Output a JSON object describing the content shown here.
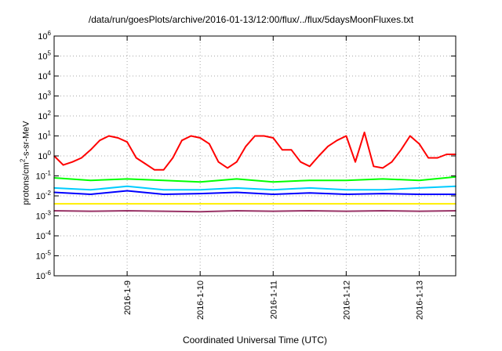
{
  "chart_data": {
    "type": "line",
    "title": "/data/run/goesPlots/archive/2016-01-13/12:00/flux/../flux/5daysMoonFluxes.txt",
    "xlabel": "Coordinated Universal Time (UTC)",
    "ylabel": {
      "prefix": "protons/cm",
      "sup": "2",
      "suffix": "-s-sr-MeV"
    },
    "y_scale": "log",
    "ylim": [
      1e-06,
      1000000.0
    ],
    "y_ticks": [
      {
        "value": 1e-06,
        "base": "10",
        "exp": "-6"
      },
      {
        "value": 1e-05,
        "base": "10",
        "exp": "-5"
      },
      {
        "value": 0.0001,
        "base": "10",
        "exp": "-4"
      },
      {
        "value": 0.001,
        "base": "10",
        "exp": "-3"
      },
      {
        "value": 0.01,
        "base": "10",
        "exp": "-2"
      },
      {
        "value": 0.1,
        "base": "10",
        "exp": "-1"
      },
      {
        "value": 1,
        "base": "10",
        "exp": "0"
      },
      {
        "value": 10,
        "base": "10",
        "exp": "1"
      },
      {
        "value": 100,
        "base": "10",
        "exp": "2"
      },
      {
        "value": 1000,
        "base": "10",
        "exp": "3"
      },
      {
        "value": 10000,
        "base": "10",
        "exp": "4"
      },
      {
        "value": 100000,
        "base": "10",
        "exp": "5"
      },
      {
        "value": 1000000,
        "base": "10",
        "exp": "6"
      }
    ],
    "xlim": [
      "2016-01-08 00:00",
      "2016-01-13 12:00"
    ],
    "x_ticks": [
      "2016-1-9",
      "2016-1-10",
      "2016-1-11",
      "2016-1-12",
      "2016-1-13"
    ],
    "grid": true,
    "series": [
      {
        "color": "#ff0000",
        "x": [
          "2016-01-08 00:00",
          "2016-01-08 03:00",
          "2016-01-08 06:00",
          "2016-01-08 09:00",
          "2016-01-08 12:00",
          "2016-01-08 15:00",
          "2016-01-08 18:00",
          "2016-01-08 21:00",
          "2016-01-09 00:00",
          "2016-01-09 03:00",
          "2016-01-09 06:00",
          "2016-01-09 09:00",
          "2016-01-09 12:00",
          "2016-01-09 15:00",
          "2016-01-09 18:00",
          "2016-01-09 21:00",
          "2016-01-10 00:00",
          "2016-01-10 03:00",
          "2016-01-10 06:00",
          "2016-01-10 09:00",
          "2016-01-10 12:00",
          "2016-01-10 15:00",
          "2016-01-10 18:00",
          "2016-01-10 21:00",
          "2016-01-11 00:00",
          "2016-01-11 03:00",
          "2016-01-11 06:00",
          "2016-01-11 09:00",
          "2016-01-11 12:00",
          "2016-01-11 15:00",
          "2016-01-11 18:00",
          "2016-01-11 21:00",
          "2016-01-12 00:00",
          "2016-01-12 03:00",
          "2016-01-12 06:00",
          "2016-01-12 09:00",
          "2016-01-12 12:00",
          "2016-01-12 15:00",
          "2016-01-12 18:00",
          "2016-01-12 21:00",
          "2016-01-13 00:00",
          "2016-01-13 03:00",
          "2016-01-13 06:00",
          "2016-01-13 09:00",
          "2016-01-13 12:00"
        ],
        "values": [
          1.0,
          0.35,
          0.5,
          0.8,
          2,
          6,
          10,
          8,
          5,
          0.8,
          0.4,
          0.2,
          0.2,
          0.8,
          6,
          10,
          8,
          4,
          0.5,
          0.25,
          0.5,
          3,
          10,
          10,
          8,
          2,
          2,
          0.5,
          0.3,
          1,
          3,
          6,
          10,
          0.5,
          15,
          0.3,
          0.25,
          0.5,
          2,
          10,
          4,
          0.8,
          0.8,
          1.2,
          1.2
        ]
      },
      {
        "color": "#00ff00",
        "x": [
          "2016-01-08 00:00",
          "2016-01-08 12:00",
          "2016-01-09 00:00",
          "2016-01-09 12:00",
          "2016-01-10 00:00",
          "2016-01-10 12:00",
          "2016-01-11 00:00",
          "2016-01-11 12:00",
          "2016-01-12 00:00",
          "2016-01-12 12:00",
          "2016-01-13 00:00",
          "2016-01-13 12:00"
        ],
        "values": [
          0.08,
          0.06,
          0.07,
          0.06,
          0.05,
          0.07,
          0.05,
          0.06,
          0.06,
          0.07,
          0.06,
          0.09
        ]
      },
      {
        "color": "#00ccff",
        "x": [
          "2016-01-08 00:00",
          "2016-01-08 12:00",
          "2016-01-09 00:00",
          "2016-01-09 12:00",
          "2016-01-10 00:00",
          "2016-01-10 12:00",
          "2016-01-11 00:00",
          "2016-01-11 12:00",
          "2016-01-12 00:00",
          "2016-01-12 12:00",
          "2016-01-13 00:00",
          "2016-01-13 12:00"
        ],
        "values": [
          0.025,
          0.02,
          0.03,
          0.02,
          0.02,
          0.025,
          0.02,
          0.025,
          0.02,
          0.02,
          0.025,
          0.03
        ]
      },
      {
        "color": "#0000ff",
        "x": [
          "2016-01-08 00:00",
          "2016-01-08 12:00",
          "2016-01-09 00:00",
          "2016-01-09 12:00",
          "2016-01-10 00:00",
          "2016-01-10 12:00",
          "2016-01-11 00:00",
          "2016-01-11 12:00",
          "2016-01-12 00:00",
          "2016-01-12 12:00",
          "2016-01-13 00:00",
          "2016-01-13 12:00"
        ],
        "values": [
          0.015,
          0.012,
          0.018,
          0.012,
          0.013,
          0.015,
          0.012,
          0.014,
          0.012,
          0.013,
          0.012,
          0.012
        ]
      },
      {
        "color": "#ffee00",
        "x": [
          "2016-01-08 00:00",
          "2016-01-09 00:00",
          "2016-01-10 00:00",
          "2016-01-11 00:00",
          "2016-01-12 00:00",
          "2016-01-13 00:00",
          "2016-01-13 12:00"
        ],
        "values": [
          0.004,
          0.004,
          0.004,
          0.004,
          0.004,
          0.004,
          0.004
        ]
      },
      {
        "color": "#993366",
        "x": [
          "2016-01-08 00:00",
          "2016-01-08 12:00",
          "2016-01-09 00:00",
          "2016-01-09 12:00",
          "2016-01-10 00:00",
          "2016-01-10 12:00",
          "2016-01-11 00:00",
          "2016-01-11 12:00",
          "2016-01-12 00:00",
          "2016-01-12 12:00",
          "2016-01-13 00:00",
          "2016-01-13 12:00"
        ],
        "values": [
          0.0018,
          0.0017,
          0.0018,
          0.0017,
          0.0016,
          0.0018,
          0.0017,
          0.0018,
          0.0017,
          0.0018,
          0.0017,
          0.0018
        ]
      }
    ]
  }
}
